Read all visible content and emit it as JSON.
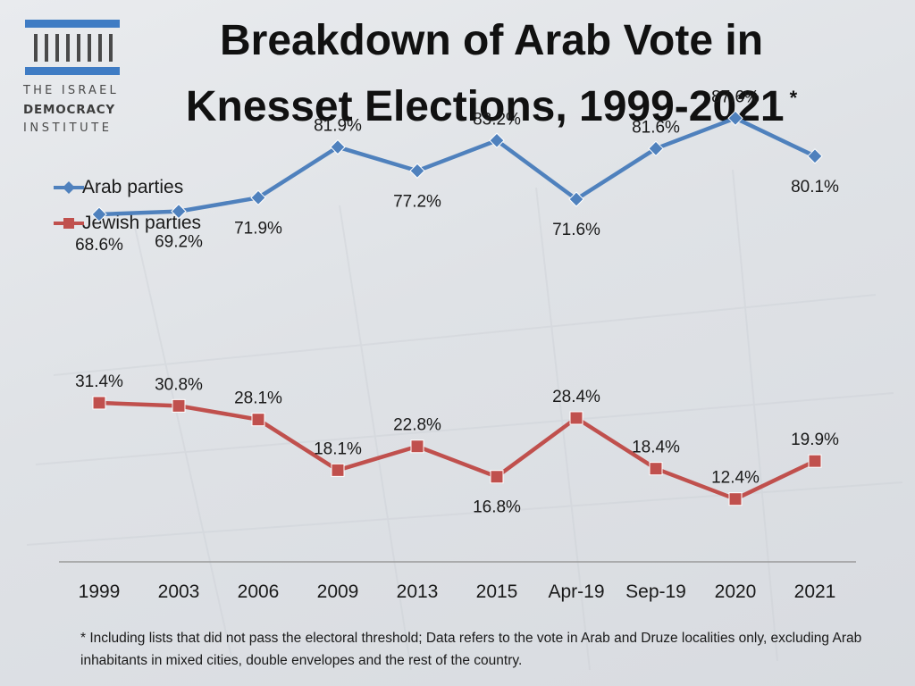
{
  "header": {
    "title_line1": "Breakdown of Arab Vote in",
    "title_line2": "Knesset Elections, 1999-2021",
    "title_marker": "*"
  },
  "logo": {
    "line1": "THE ISRAEL",
    "line2": "DEMOCRACY",
    "line3": "INSTITUTE"
  },
  "footnote": "* Including lists that did not pass the electoral threshold; Data refers to the vote in Arab and Druze localities only, excluding Arab inhabitants in mixed cities, double envelopes and the rest of the country.",
  "colors": {
    "arab": "#4f81bd",
    "jewish": "#c0504d",
    "logo": "#3f7cc4"
  },
  "chart_data": {
    "type": "line",
    "title": "Breakdown of Arab Vote in Knesset Elections, 1999-2021",
    "xlabel": "",
    "ylabel": "",
    "ylim": [
      0,
      100
    ],
    "grid": false,
    "legend_position": "top-left",
    "categories": [
      "1999",
      "2003",
      "2006",
      "2009",
      "2013",
      "2015",
      "Apr-19",
      "Sep-19",
      "2020",
      "2021"
    ],
    "series": [
      {
        "name": "Arab parties",
        "marker": "diamond",
        "values": [
          68.6,
          69.2,
          71.9,
          81.9,
          77.2,
          83.2,
          71.6,
          81.6,
          87.6,
          80.1
        ],
        "labels": [
          "68.6%",
          "69.2%",
          "71.9%",
          "81.9%",
          "77.2%",
          "83.2%",
          "71.6%",
          "81.6%",
          "87.6%",
          "80.1%"
        ]
      },
      {
        "name": "Jewish parties",
        "marker": "square",
        "values": [
          31.4,
          30.8,
          28.1,
          18.1,
          22.8,
          16.8,
          28.4,
          18.4,
          12.4,
          19.9
        ],
        "labels": [
          "31.4%",
          "30.8%",
          "28.1%",
          "18.1%",
          "22.8%",
          "16.8%",
          "28.4%",
          "18.4%",
          "12.4%",
          "19.9%"
        ]
      }
    ]
  }
}
